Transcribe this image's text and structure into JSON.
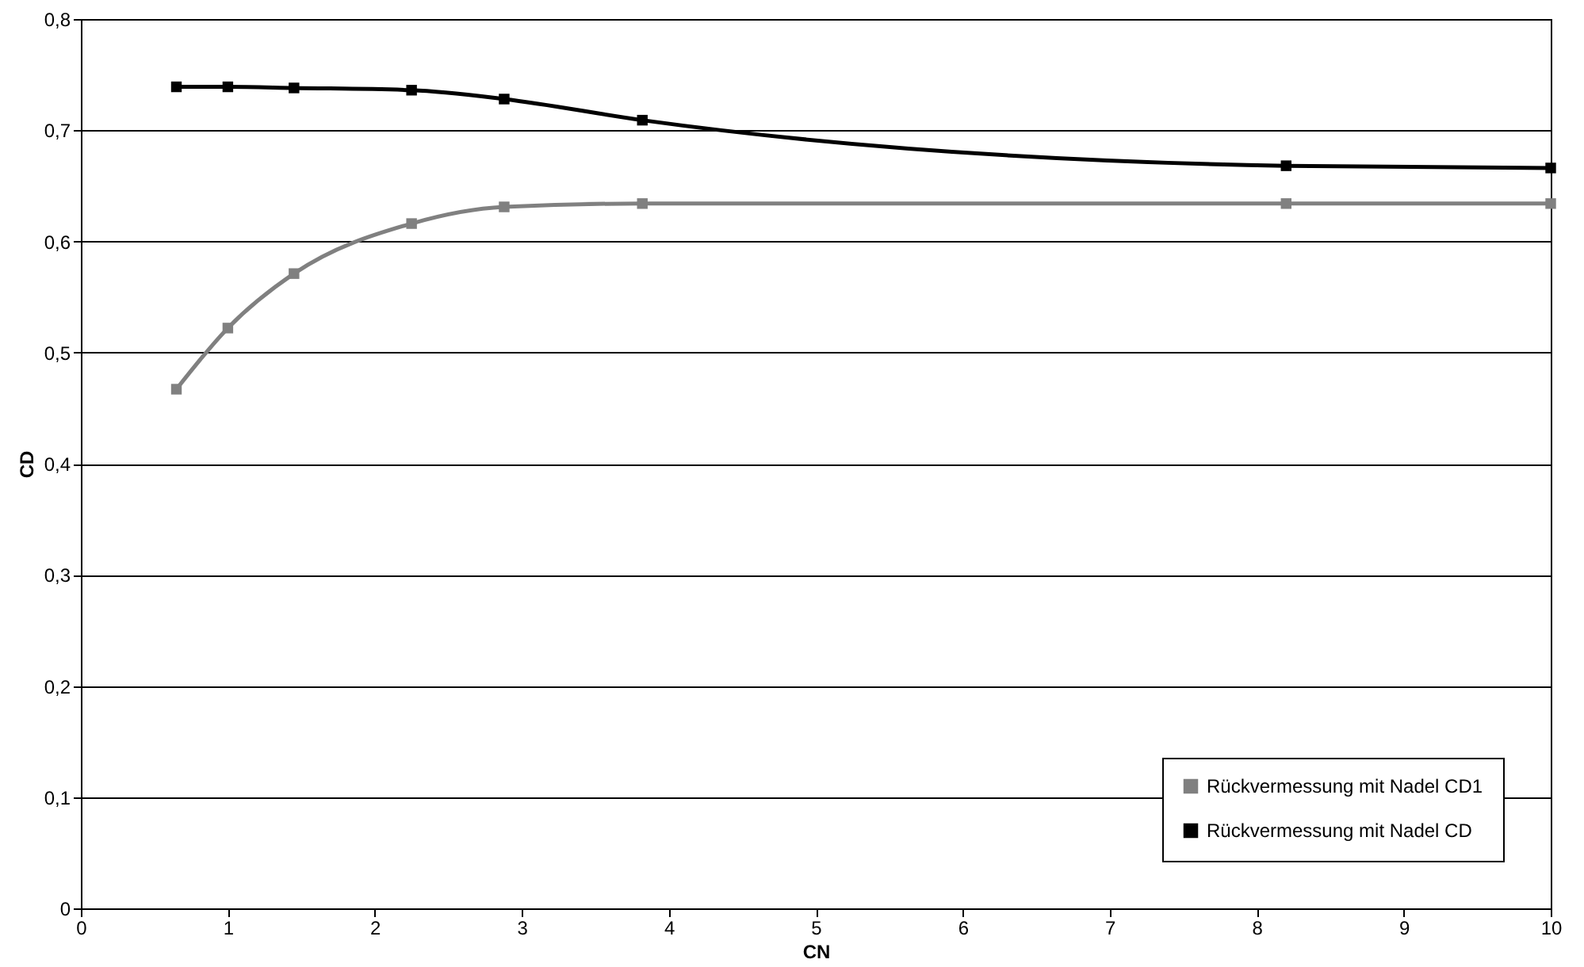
{
  "chart_data": {
    "type": "line",
    "xlabel": "CN",
    "ylabel": "CD",
    "xlim": [
      0,
      10
    ],
    "xticks": [
      0,
      1,
      2,
      3,
      4,
      5,
      6,
      7,
      8,
      9,
      10
    ],
    "ylim": [
      0,
      0.8
    ],
    "yticks": [
      0,
      {
        "value": 0.1,
        "label": "0,1"
      },
      {
        "value": 0.2,
        "label": "0,2"
      },
      {
        "value": 0.3,
        "label": "0,3"
      },
      {
        "value": 0.4,
        "label": "0,4"
      },
      {
        "value": 0.5,
        "label": "0,5"
      },
      {
        "value": 0.6,
        "label": "0,6"
      },
      {
        "value": 0.7,
        "label": "0,7"
      },
      {
        "value": 0.8,
        "label": "0,8"
      }
    ],
    "grid": "y",
    "legend": "bottom right",
    "marker": "square",
    "line_style": "solid",
    "series": [
      {
        "name": "Rückvermessung mit Nadel CD1",
        "color": "#808080",
        "x": [
          0.65,
          1,
          1.45,
          2.25,
          2.88,
          3.82,
          8.2,
          10
        ],
        "values": [
          0.467,
          0.522,
          0.571,
          0.616,
          0.631,
          0.634,
          0.634,
          0.634
        ]
      },
      {
        "name": "Rückvermessung mit Nadel CD",
        "color": "#000000",
        "x": [
          0.65,
          1,
          1.45,
          2.25,
          2.88,
          3.82,
          8.2,
          10
        ],
        "values": [
          0.739,
          0.739,
          0.738,
          0.736,
          0.728,
          0.709,
          0.668,
          0.666
        ]
      }
    ]
  }
}
